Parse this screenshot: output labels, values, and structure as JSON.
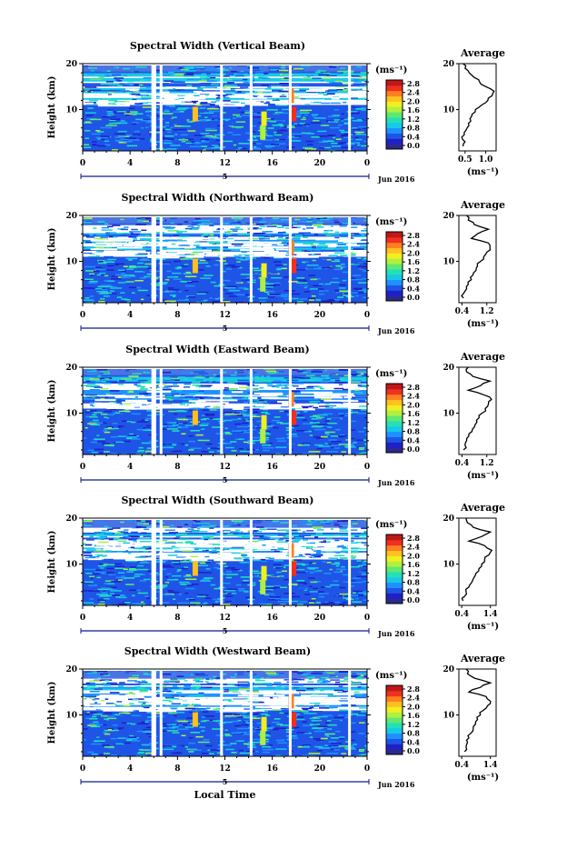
{
  "chart_data": [
    {
      "type": "heatmap",
      "title": "Spectral Width (Vertical Beam)",
      "ylabel": "Height (km)",
      "xticks": [
        "0",
        "4",
        "8",
        "12",
        "16",
        "20",
        "0"
      ],
      "yticks": [
        "20",
        "10"
      ],
      "xlim": [
        0,
        24
      ],
      "ylim": [
        1,
        20
      ],
      "colorbar_label": "(ms⁻¹)",
      "colorbar_ticks": [
        "2.8",
        "2.4",
        "2.0",
        "1.6",
        "1.2",
        "0.8",
        "0.4",
        "0.0"
      ],
      "date_label": "5",
      "month_label": "Jun 2016",
      "profile": {
        "title": "Average",
        "xlabel": "(ms⁻¹)",
        "xticks": [
          "0.5",
          "1.0"
        ],
        "xlim": [
          0.35,
          1.25
        ],
        "heights": [
          2,
          3,
          4,
          5,
          6,
          7,
          8,
          9,
          10,
          11,
          12,
          13,
          14,
          15,
          16,
          17,
          18,
          19,
          20
        ],
        "values": [
          0.45,
          0.5,
          0.42,
          0.48,
          0.55,
          0.58,
          0.62,
          0.67,
          0.75,
          0.9,
          1.05,
          1.15,
          1.2,
          1.0,
          0.85,
          0.72,
          0.6,
          0.5,
          0.45
        ]
      }
    },
    {
      "type": "heatmap",
      "title": "Spectral Width (Northward Beam)",
      "ylabel": "Height (km)",
      "xticks": [
        "0",
        "4",
        "8",
        "12",
        "16",
        "20",
        "0"
      ],
      "yticks": [
        "20",
        "10"
      ],
      "xlim": [
        0,
        24
      ],
      "ylim": [
        1,
        20
      ],
      "colorbar_label": "(ms⁻¹)",
      "colorbar_ticks": [
        "2.8",
        "2.4",
        "2.0",
        "1.6",
        "1.2",
        "0.8",
        "0.4",
        "0.0"
      ],
      "date_label": "5",
      "month_label": "Jun 2016",
      "profile": {
        "title": "Average",
        "xlabel": "(ms⁻¹)",
        "xticks": [
          "0.4",
          "1.2"
        ],
        "xlim": [
          0.3,
          1.5
        ],
        "heights": [
          2,
          3,
          4,
          5,
          6,
          7,
          8,
          9,
          10,
          11,
          12,
          13,
          14,
          15,
          16,
          17,
          18,
          19,
          20
        ],
        "values": [
          0.45,
          0.45,
          0.55,
          0.6,
          0.7,
          0.75,
          0.85,
          0.9,
          1.0,
          1.1,
          1.2,
          1.3,
          1.25,
          0.7,
          0.9,
          1.25,
          0.8,
          0.6,
          0.55
        ]
      }
    },
    {
      "type": "heatmap",
      "title": "Spectral Width (Eastward Beam)",
      "ylabel": "Height (km)",
      "xticks": [
        "0",
        "4",
        "8",
        "12",
        "16",
        "20",
        "0"
      ],
      "yticks": [
        "20",
        "10"
      ],
      "xlim": [
        0,
        24
      ],
      "ylim": [
        1,
        20
      ],
      "colorbar_label": "(ms⁻¹)",
      "colorbar_ticks": [
        "2.8",
        "2.4",
        "2.0",
        "1.6",
        "1.2",
        "0.8",
        "0.4",
        "0.0"
      ],
      "date_label": "5",
      "month_label": "Jun 2016",
      "profile": {
        "title": "Average",
        "xlabel": "(ms⁻¹)",
        "xticks": [
          "0.4",
          "1.2"
        ],
        "xlim": [
          0.3,
          1.5
        ],
        "heights": [
          2,
          3,
          4,
          5,
          6,
          7,
          8,
          9,
          10,
          11,
          12,
          13,
          14,
          15,
          16,
          17,
          18,
          19,
          20
        ],
        "values": [
          0.45,
          0.5,
          0.55,
          0.62,
          0.72,
          0.8,
          0.88,
          0.95,
          1.05,
          1.15,
          1.25,
          1.35,
          1.1,
          0.6,
          1.0,
          1.3,
          0.75,
          0.55,
          0.6
        ]
      }
    },
    {
      "type": "heatmap",
      "title": "Spectral Width (Southward Beam)",
      "ylabel": "Height (km)",
      "xticks": [
        "0",
        "4",
        "8",
        "12",
        "16",
        "20",
        "0"
      ],
      "yticks": [
        "20",
        "10"
      ],
      "xlim": [
        0,
        24
      ],
      "ylim": [
        1,
        20
      ],
      "colorbar_label": "(ms⁻¹)",
      "colorbar_ticks": [
        "2.8",
        "2.4",
        "2.0",
        "1.6",
        "1.2",
        "0.8",
        "0.4",
        "0.0"
      ],
      "date_label": "5",
      "month_label": "Jun 2016",
      "profile": {
        "title": "Average",
        "xlabel": "(ms⁻¹)",
        "xticks": [
          "0.4",
          "1.4"
        ],
        "xlim": [
          0.3,
          1.6
        ],
        "heights": [
          2,
          3,
          4,
          5,
          6,
          7,
          8,
          9,
          10,
          11,
          12,
          13,
          14,
          15,
          16,
          17,
          18,
          19,
          20
        ],
        "values": [
          0.45,
          0.5,
          0.55,
          0.65,
          0.75,
          0.82,
          0.9,
          1.0,
          1.1,
          1.2,
          1.35,
          1.45,
          1.2,
          0.65,
          1.1,
          1.4,
          0.8,
          0.6,
          0.55
        ]
      }
    },
    {
      "type": "heatmap",
      "title": "Spectral Width (Westward Beam)",
      "ylabel": "Height (km)",
      "xlabel": "Local Time",
      "xticks": [
        "0",
        "4",
        "8",
        "12",
        "16",
        "20",
        "0"
      ],
      "yticks": [
        "20",
        "10"
      ],
      "xlim": [
        0,
        24
      ],
      "ylim": [
        1,
        20
      ],
      "colorbar_label": "(ms⁻¹)",
      "colorbar_ticks": [
        "2.8",
        "2.4",
        "2.0",
        "1.6",
        "1.2",
        "0.8",
        "0.4",
        "0.0"
      ],
      "date_label": "5",
      "month_label": "Jun 2016",
      "profile": {
        "title": "Average",
        "xlabel": "(ms⁻¹)",
        "xticks": [
          "0.4",
          "1.4"
        ],
        "xlim": [
          0.3,
          1.6
        ],
        "heights": [
          2,
          3,
          4,
          5,
          6,
          7,
          8,
          9,
          10,
          11,
          12,
          13,
          14,
          15,
          16,
          17,
          18,
          19,
          20
        ],
        "values": [
          0.5,
          0.55,
          0.6,
          0.65,
          0.72,
          0.8,
          0.88,
          0.95,
          1.05,
          1.15,
          1.3,
          1.4,
          1.25,
          0.65,
          1.05,
          1.4,
          0.85,
          0.6,
          0.55
        ]
      }
    }
  ],
  "colors": {
    "colormap": [
      "#2a2a8c",
      "#2020c8",
      "#1f55e6",
      "#1e90ff",
      "#18c8e8",
      "#24e0b8",
      "#60e870",
      "#b0f040",
      "#f0f020",
      "#ffc020",
      "#ff8020",
      "#f03020",
      "#c01818"
    ]
  }
}
